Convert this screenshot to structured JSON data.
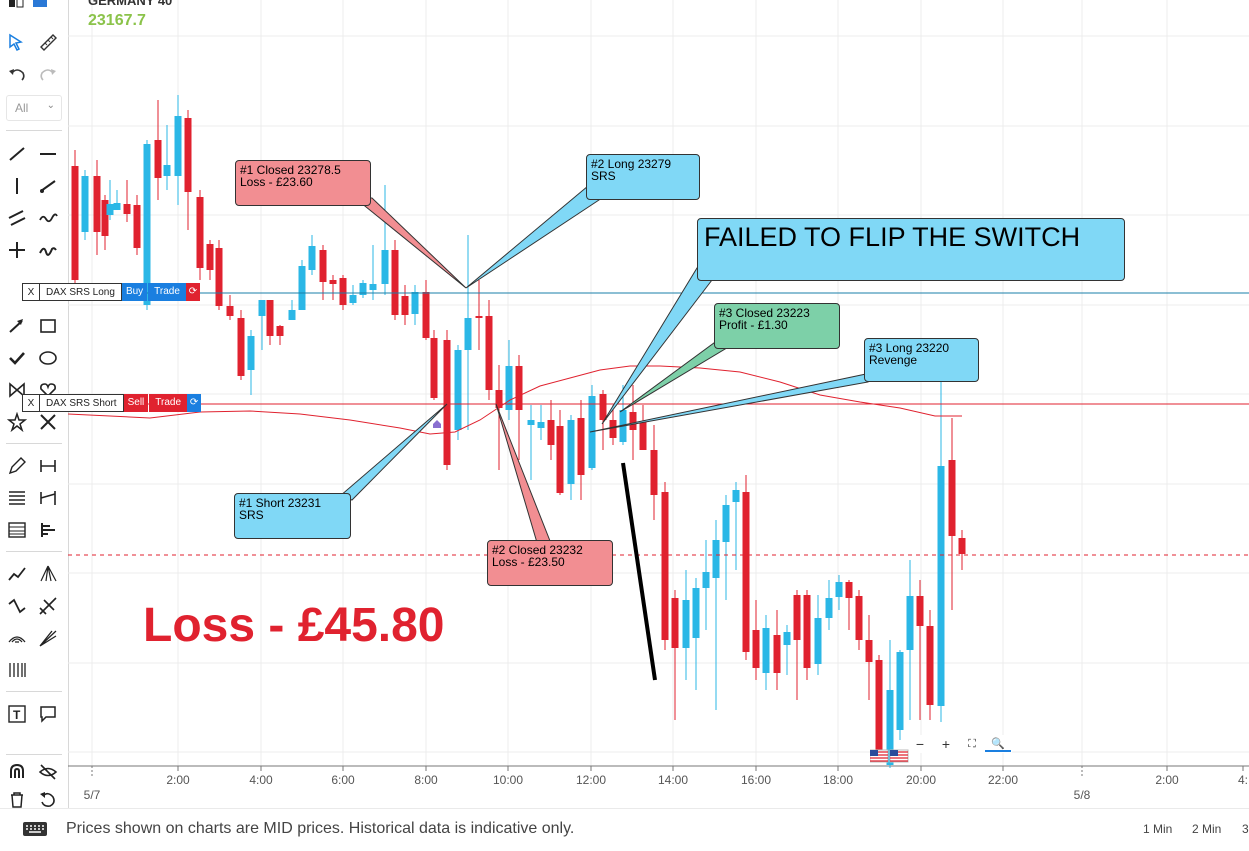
{
  "instrument": {
    "name": "GERMANY 40",
    "price": "23167.7"
  },
  "toolbar": {
    "select_label": "All",
    "tools": [
      "cursor-select",
      "ruler",
      "undo",
      "redo",
      "line",
      "hline",
      "vline",
      "ray",
      "parallel",
      "wave",
      "crosshair",
      "brush",
      "arrow",
      "rectangle",
      "check",
      "ellipse",
      "bowtie",
      "heart",
      "star",
      "cross",
      "pencil",
      "hbracket",
      "fib-lines",
      "measure",
      "table",
      "align",
      "trend-multi",
      "fan",
      "zigzag",
      "pitchfork",
      "speed-fan",
      "angle-fan",
      "bars",
      "text",
      "comment",
      "magnet",
      "eye",
      "trash",
      "reset"
    ]
  },
  "chart": {
    "colors": {
      "up": "#2bb7e6",
      "down": "#e0222f",
      "grid": "#ececec",
      "ma": "#e0222f"
    },
    "date_labels": [
      "5/7",
      "5/8"
    ],
    "time_labels": [
      "2:00",
      "4:00",
      "6:00",
      "8:00",
      "10:00",
      "12:00",
      "14:00",
      "16:00",
      "18:00",
      "20:00",
      "22:00",
      "2:00",
      "4:"
    ]
  },
  "order_tags": [
    {
      "close": "X",
      "name": "DAX SRS Long",
      "side": "Buy",
      "action": "Trade",
      "color": "#1a7fe0"
    },
    {
      "close": "X",
      "name": "DAX SRS Short",
      "side": "Sell",
      "action": "Trade",
      "color": "#e0222f"
    }
  ],
  "annotations": {
    "c1": {
      "line1": "#1 Closed 23278.5",
      "line2": "Loss - £23.60"
    },
    "c2": {
      "line1": "#2 Long 23279",
      "line2": "SRS"
    },
    "c3": {
      "text": "FAILED TO FLIP THE SWITCH"
    },
    "c4": {
      "line1": "#3 Closed 23223",
      "line2": "Profit - £1.30"
    },
    "c5": {
      "line1": "#3 Long 23220",
      "line2": "Revenge"
    },
    "c6": {
      "line1": "#1 Short 23231",
      "line2": "SRS"
    },
    "c7": {
      "line1": "#2 Closed 23232",
      "line2": "Loss - £23.50"
    },
    "loss": "Loss - £45.80"
  },
  "zoom_controls": [
    "−",
    "+",
    "⛶",
    "🔍"
  ],
  "footer": {
    "message": "Prices shown on charts are MID prices. Historical data is indicative only.",
    "timeframes": [
      "1 Min",
      "2 Min",
      "3"
    ]
  }
}
